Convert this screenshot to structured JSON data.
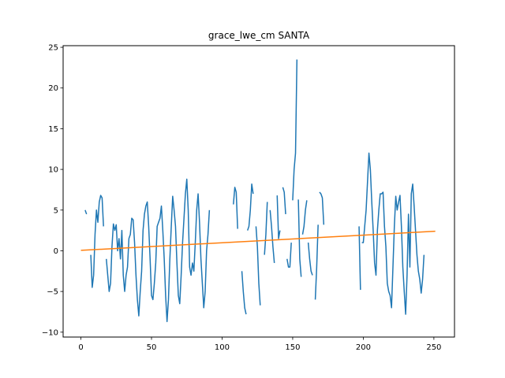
{
  "chart_data": {
    "type": "line",
    "title": "grace_lwe_cm SANTA",
    "xlabel": "",
    "ylabel": "",
    "xlim": [
      -12.6,
      264.6
    ],
    "ylim": [
      -10.6,
      25.2
    ],
    "x_ticks": [
      0,
      50,
      100,
      150,
      200,
      250
    ],
    "y_ticks": [
      -10,
      -5,
      0,
      5,
      10,
      15,
      20,
      25
    ],
    "grid": false,
    "series": [
      {
        "color": "#1f77b4",
        "segments": [
          [
            [
              3,
              5.0
            ],
            [
              4,
              4.5
            ]
          ],
          [
            [
              7,
              -0.5
            ],
            [
              8,
              -4.5
            ],
            [
              9,
              -3.0
            ],
            [
              10,
              2.0
            ],
            [
              11,
              5.0
            ],
            [
              12,
              3.5
            ],
            [
              13,
              6.0
            ],
            [
              14,
              6.8
            ],
            [
              15,
              6.5
            ],
            [
              16,
              3.0
            ]
          ],
          [
            [
              18,
              -1.0
            ],
            [
              19,
              -3.0
            ],
            [
              20,
              -5.0
            ],
            [
              21,
              -4.0
            ],
            [
              22,
              0.5
            ],
            [
              23,
              3.3
            ],
            [
              24,
              2.5
            ],
            [
              25,
              3.2
            ],
            [
              26,
              0.0
            ],
            [
              27,
              1.5
            ],
            [
              28,
              -1.0
            ],
            [
              29,
              2.5
            ],
            [
              30,
              -3.0
            ],
            [
              31,
              -5.0
            ],
            [
              32,
              -3.0
            ],
            [
              33,
              -2.0
            ],
            [
              34,
              1.5
            ],
            [
              35,
              2.0
            ],
            [
              36,
              4.0
            ],
            [
              37,
              3.8
            ],
            [
              38,
              1.0
            ],
            [
              39,
              -3.0
            ],
            [
              40,
              -6.0
            ],
            [
              41,
              -8.0
            ],
            [
              42,
              -5.0
            ],
            [
              43,
              -2.5
            ],
            [
              44,
              2.5
            ],
            [
              45,
              4.5
            ],
            [
              46,
              5.5
            ],
            [
              47,
              6.0
            ],
            [
              48,
              3.0
            ],
            [
              49,
              -1.0
            ],
            [
              50,
              -5.5
            ],
            [
              51,
              -6.0
            ],
            [
              52,
              -4.0
            ],
            [
              53,
              -1.5
            ],
            [
              54,
              3.0
            ],
            [
              55,
              3.5
            ],
            [
              56,
              4.0
            ],
            [
              57,
              5.5
            ],
            [
              58,
              2.5
            ],
            [
              59,
              -1.0
            ],
            [
              60,
              -5.5
            ],
            [
              61,
              -8.7
            ],
            [
              62,
              -6.0
            ],
            [
              63,
              -1.0
            ],
            [
              64,
              3.0
            ],
            [
              65,
              6.7
            ],
            [
              66,
              5.0
            ],
            [
              67,
              3.0
            ],
            [
              68,
              -1.5
            ],
            [
              69,
              -5.5
            ],
            [
              70,
              -6.5
            ],
            [
              71,
              -3.0
            ],
            [
              72,
              1.0
            ],
            [
              73,
              4.0
            ],
            [
              74,
              7.0
            ],
            [
              75,
              8.8
            ],
            [
              76,
              5.0
            ],
            [
              77,
              -2.0
            ],
            [
              78,
              -3.0
            ],
            [
              79,
              -1.5
            ],
            [
              80,
              -2.5
            ],
            [
              81,
              1.0
            ],
            [
              82,
              5.0
            ],
            [
              83,
              7.0
            ],
            [
              84,
              3.5
            ],
            [
              85,
              -1.0
            ],
            [
              86,
              -4.0
            ],
            [
              87,
              -7.0
            ],
            [
              88,
              -5.0
            ],
            [
              89,
              0.0
            ],
            [
              90,
              2.0
            ],
            [
              91,
              5.0
            ]
          ],
          [
            [
              108,
              5.7
            ],
            [
              109,
              7.8
            ],
            [
              110,
              7.2
            ],
            [
              111,
              2.7
            ]
          ],
          [
            [
              114,
              -2.5
            ],
            [
              115,
              -5.0
            ],
            [
              116,
              -7.0
            ],
            [
              117,
              -7.8
            ]
          ],
          [
            [
              118,
              2.5
            ],
            [
              119,
              3.0
            ],
            [
              120,
              5.0
            ],
            [
              121,
              8.2
            ],
            [
              122,
              7.0
            ]
          ],
          [
            [
              124,
              3.0
            ],
            [
              125,
              0.5
            ],
            [
              126,
              -4.0
            ],
            [
              127,
              -6.7
            ]
          ],
          [
            [
              130,
              -0.5
            ],
            [
              131,
              2.0
            ],
            [
              132,
              6.0
            ]
          ],
          [
            [
              134,
              5.0
            ],
            [
              135,
              3.0
            ],
            [
              136,
              0.5
            ],
            [
              137,
              -1.5
            ]
          ],
          [
            [
              139,
              6.8
            ],
            [
              140,
              1.5
            ],
            [
              141,
              2.5
            ]
          ],
          [
            [
              143,
              7.8
            ],
            [
              144,
              7.2
            ],
            [
              145,
              4.5
            ]
          ],
          [
            [
              146,
              -1.0
            ],
            [
              147,
              -2.0
            ],
            [
              148,
              -2.0
            ],
            [
              149,
              1.0
            ]
          ],
          [
            [
              150,
              6.2
            ],
            [
              151,
              10.0
            ],
            [
              152,
              12.0
            ],
            [
              153,
              23.5
            ]
          ],
          [
            [
              154,
              6.3
            ],
            [
              155,
              -1.0
            ],
            [
              156,
              -3.2
            ]
          ],
          [
            [
              157,
              2.0
            ],
            [
              158,
              3.0
            ],
            [
              159,
              5.0
            ],
            [
              160,
              6.2
            ]
          ],
          [
            [
              161,
              1.0
            ],
            [
              162,
              -1.0
            ],
            [
              163,
              -2.5
            ],
            [
              164,
              -3.0
            ]
          ],
          [
            [
              166,
              -6.0
            ],
            [
              167,
              -2.0
            ],
            [
              168,
              3.2
            ]
          ],
          [
            [
              169,
              7.2
            ],
            [
              170,
              7.0
            ],
            [
              171,
              6.5
            ],
            [
              172,
              3.2
            ]
          ],
          [
            [
              197,
              3.0
            ],
            [
              198,
              -4.8
            ]
          ],
          [
            [
              199,
              1.0
            ],
            [
              200,
              1.0
            ],
            [
              201,
              3.0
            ],
            [
              202,
              5.0
            ],
            [
              203,
              8.5
            ],
            [
              204,
              12.0
            ],
            [
              205,
              10.0
            ],
            [
              206,
              6.0
            ],
            [
              207,
              2.5
            ],
            [
              208,
              -1.5
            ],
            [
              209,
              -3.0
            ],
            [
              210,
              2.5
            ],
            [
              211,
              5.0
            ],
            [
              212,
              7.0
            ],
            [
              213,
              7.0
            ],
            [
              214,
              7.2
            ],
            [
              215,
              3.0
            ],
            [
              216,
              0.5
            ],
            [
              217,
              -4.0
            ],
            [
              218,
              -5.0
            ],
            [
              219,
              -5.5
            ],
            [
              220,
              -7.0
            ],
            [
              221,
              -2.0
            ],
            [
              222,
              3.0
            ],
            [
              223,
              6.7
            ],
            [
              224,
              5.0
            ],
            [
              225,
              6.0
            ],
            [
              226,
              6.8
            ],
            [
              227,
              3.0
            ],
            [
              228,
              -2.0
            ],
            [
              229,
              -5.0
            ],
            [
              230,
              -7.8
            ],
            [
              231,
              -3.0
            ],
            [
              232,
              4.5
            ],
            [
              233,
              -2.0
            ],
            [
              234,
              7.0
            ],
            [
              235,
              8.2
            ],
            [
              236,
              5.5
            ],
            [
              237,
              2.5
            ],
            [
              238,
              -0.5
            ],
            [
              239,
              -2.5
            ],
            [
              240,
              -3.5
            ],
            [
              241,
              -5.2
            ],
            [
              242,
              -3.5
            ],
            [
              243,
              -0.5
            ]
          ]
        ]
      },
      {
        "color": "#ff7f0e",
        "points": [
          [
            0,
            0.05
          ],
          [
            251,
            2.4
          ]
        ]
      }
    ]
  }
}
